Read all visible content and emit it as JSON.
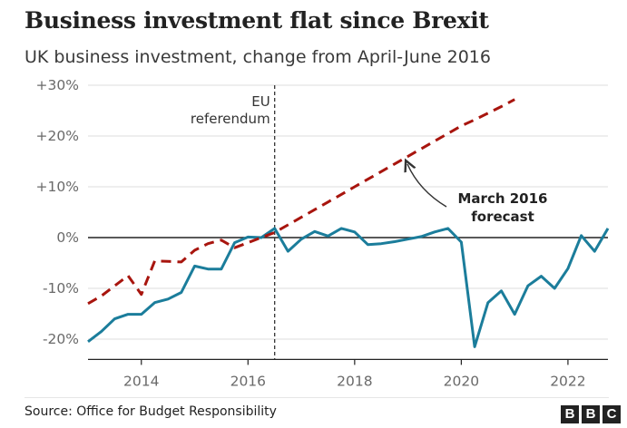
{
  "header": {
    "title": "Business investment flat since Brexit",
    "subtitle": "UK business investment, change from April-June 2016"
  },
  "footer": {
    "source": "Source: Office for Budget Responsibility",
    "logo_letters": [
      "B",
      "B",
      "C"
    ]
  },
  "colors": {
    "actual": "#1b7d9b",
    "forecast": "#a8150e",
    "zero_line": "#222222",
    "grid": "#dcdcdc",
    "vline": "#333333"
  },
  "chart_data": {
    "type": "line",
    "title": "Business investment flat since Brexit",
    "subtitle": "UK business investment, change from April-June 2016",
    "xlabel": "",
    "ylabel": "",
    "xlim": [
      2013.0,
      2022.75
    ],
    "ylim": [
      -24,
      30
    ],
    "yticks": [
      {
        "value": 30,
        "label": "+30%"
      },
      {
        "value": 20,
        "label": "+20%"
      },
      {
        "value": 10,
        "label": "+10%"
      },
      {
        "value": 0,
        "label": "0%"
      },
      {
        "value": -10,
        "label": "-10%"
      },
      {
        "value": -20,
        "label": "-20%"
      }
    ],
    "xticks": [
      {
        "value": 2014.0,
        "label": "2014"
      },
      {
        "value": 2016.0,
        "label": "2016"
      },
      {
        "value": 2018.0,
        "label": "2018"
      },
      {
        "value": 2020.0,
        "label": "2020"
      },
      {
        "value": 2022.0,
        "label": "2022"
      }
    ],
    "grid": true,
    "annotations": [
      {
        "id": "referendum",
        "lines": [
          "EU",
          "referendum"
        ],
        "x": 2016.5
      },
      {
        "id": "forecast",
        "lines": [
          "March 2016",
          "forecast"
        ]
      }
    ],
    "series": [
      {
        "name": "UK business investment",
        "style": "solid",
        "x": [
          2013.0,
          2013.25,
          2013.5,
          2013.75,
          2014.0,
          2014.25,
          2014.5,
          2014.75,
          2015.0,
          2015.25,
          2015.5,
          2015.75,
          2016.0,
          2016.25,
          2016.5,
          2016.75,
          2017.0,
          2017.25,
          2017.5,
          2017.75,
          2018.0,
          2018.25,
          2018.5,
          2018.75,
          2019.0,
          2019.25,
          2019.5,
          2019.75,
          2020.0,
          2020.25,
          2020.5,
          2020.75,
          2021.0,
          2021.25,
          2021.5,
          2021.75,
          2022.0,
          2022.25,
          2022.5,
          2022.75
        ],
        "values": [
          -20.5,
          -18.5,
          -16.0,
          -15.1,
          -15.1,
          -12.8,
          -12.1,
          -10.8,
          -5.6,
          -6.2,
          -6.2,
          -1.0,
          0.1,
          0.0,
          1.8,
          -2.7,
          -0.3,
          1.2,
          0.3,
          1.8,
          1.1,
          -1.4,
          -1.2,
          -0.8,
          -0.3,
          0.2,
          1.1,
          1.8,
          -0.9,
          -21.5,
          -12.8,
          -10.5,
          -15.1,
          -9.5,
          -7.6,
          -10.0,
          -6.1,
          0.4,
          -2.7,
          1.8
        ]
      },
      {
        "name": "March 2016 forecast",
        "style": "dashed",
        "x": [
          2013.0,
          2013.25,
          2013.5,
          2013.75,
          2014.0,
          2014.25,
          2014.5,
          2014.75,
          2015.0,
          2015.25,
          2015.5,
          2015.75,
          2016.0,
          2016.25,
          2016.5,
          2016.75,
          2017.0,
          2017.25,
          2017.5,
          2017.75,
          2018.0,
          2018.25,
          2018.5,
          2018.75,
          2019.0,
          2019.25,
          2019.5,
          2019.75,
          2020.0,
          2020.25,
          2020.5,
          2020.75,
          2021.0
        ],
        "values": [
          -13.0,
          -11.5,
          -9.5,
          -7.5,
          -11.2,
          -4.6,
          -4.7,
          -4.8,
          -2.5,
          -1.2,
          -0.5,
          -2.0,
          -1.0,
          0.0,
          1.0,
          2.5,
          4.0,
          5.5,
          7.0,
          8.5,
          10.0,
          11.5,
          13.0,
          14.5,
          16.0,
          17.5,
          19.0,
          20.5,
          22.0,
          23.2,
          24.5,
          25.8,
          27.2
        ]
      }
    ]
  }
}
